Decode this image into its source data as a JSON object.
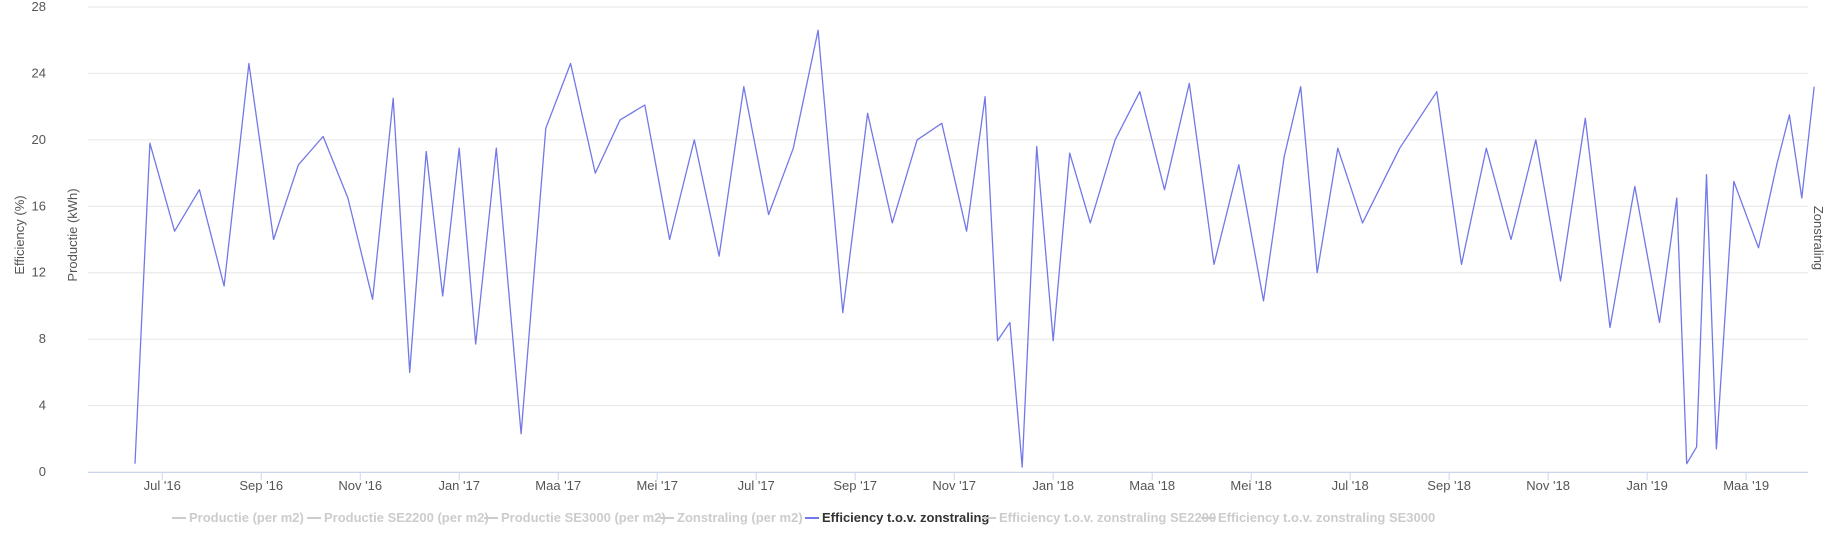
{
  "chart_data": {
    "type": "line",
    "y_axes": [
      {
        "id": "efficiency",
        "label": "Efficiency (%)",
        "side": "left"
      },
      {
        "id": "production",
        "label": "Productie (kWh)",
        "side": "left"
      },
      {
        "id": "irradiance",
        "label": "Zonstraling",
        "side": "right"
      }
    ],
    "ylim": [
      0,
      28
    ],
    "y_ticks": [
      0,
      4,
      8,
      12,
      16,
      20,
      24,
      28
    ],
    "x_ticks": [
      "Jul '16",
      "Sep '16",
      "Nov '16",
      "Jan '17",
      "Maa '17",
      "Mei '17",
      "Jul '17",
      "Sep '17",
      "Nov '17",
      "Jan '18",
      "Maa '18",
      "Mei '18",
      "Jul '18",
      "Sep '18",
      "Nov '18",
      "Jan '19",
      "Maa '19"
    ],
    "x_range": [
      "Jun '16",
      "Apr '19"
    ],
    "grid": true,
    "legend_position": "bottom-center",
    "series": [
      {
        "name": "Productie (per m2)",
        "visible": false,
        "color": "#cccccc"
      },
      {
        "name": "Productie SE2200 (per m2)",
        "visible": false,
        "color": "#cccccc"
      },
      {
        "name": "Productie SE3000 (per m2)",
        "visible": false,
        "color": "#cccccc"
      },
      {
        "name": "Zonstraling (per m2)",
        "visible": false,
        "color": "#cccccc"
      },
      {
        "name": "Efficiency t.o.v. zonstraling",
        "visible": true,
        "color": "#7378e8",
        "key_points": [
          [
            "Jun '16",
            0.5
          ],
          [
            "Jul '16",
            19.8
          ],
          [
            "Jul '16",
            14.5
          ],
          [
            "Aug '16",
            17.0
          ],
          [
            "Aug '16",
            11.2
          ],
          [
            "Sep '16",
            24.6
          ],
          [
            "Sep '16",
            14.0
          ],
          [
            "Oct '16",
            18.5
          ],
          [
            "Oct '16",
            20.2
          ],
          [
            "Nov '16",
            16.5
          ],
          [
            "Nov '16",
            10.4
          ],
          [
            "Dec '16",
            22.5
          ],
          [
            "Dec '16",
            6.0
          ],
          [
            "Dec '16",
            19.3
          ],
          [
            "Jan '17",
            10.6
          ],
          [
            "Jan '17",
            19.5
          ],
          [
            "Jan '17",
            7.7
          ],
          [
            "Feb '17",
            19.5
          ],
          [
            "Feb '17",
            2.3
          ],
          [
            "Mar '17",
            20.7
          ],
          [
            "Mar '17",
            24.6
          ],
          [
            "Apr '17",
            18.0
          ],
          [
            "Apr '17",
            21.2
          ],
          [
            "May '17",
            22.1
          ],
          [
            "May '17",
            14.0
          ],
          [
            "Jun '17",
            20.0
          ],
          [
            "Jun '17",
            13.0
          ],
          [
            "Jul '17",
            23.2
          ],
          [
            "Jul '17",
            15.5
          ],
          [
            "Aug '17",
            19.5
          ],
          [
            "Aug '17",
            26.6
          ],
          [
            "Sep '17",
            9.6
          ],
          [
            "Sep '17",
            21.6
          ],
          [
            "Oct '17",
            15.0
          ],
          [
            "Oct '17",
            20.0
          ],
          [
            "Nov '17",
            21.0
          ],
          [
            "Nov '17",
            14.5
          ],
          [
            "Dec '17",
            22.6
          ],
          [
            "Dec '17",
            7.9
          ],
          [
            "Dec '17",
            9.0
          ],
          [
            "Dec '17",
            0.3
          ],
          [
            "Jan '18",
            19.6
          ],
          [
            "Jan '18",
            7.9
          ],
          [
            "Jan '18",
            19.2
          ],
          [
            "Feb '18",
            15.0
          ],
          [
            "Feb '18",
            20.0
          ],
          [
            "Mar '18",
            22.9
          ],
          [
            "Mar '18",
            17.0
          ],
          [
            "Apr '18",
            23.4
          ],
          [
            "Apr '18",
            12.5
          ],
          [
            "May '18",
            18.5
          ],
          [
            "May '18",
            10.3
          ],
          [
            "Jun '18",
            19.0
          ],
          [
            "Jun '18",
            23.2
          ],
          [
            "Jun '18",
            12.0
          ],
          [
            "Jul '18",
            19.5
          ],
          [
            "Jul '18",
            15.0
          ],
          [
            "Aug '18",
            19.5
          ],
          [
            "Sep '18",
            22.9
          ],
          [
            "Sep '18",
            12.5
          ],
          [
            "Oct '18",
            19.5
          ],
          [
            "Oct '18",
            14.0
          ],
          [
            "Nov '18",
            20.0
          ],
          [
            "Nov '18",
            11.5
          ],
          [
            "Dec '18",
            21.3
          ],
          [
            "Dec '18",
            8.7
          ],
          [
            "Jan '19",
            17.2
          ],
          [
            "Jan '19",
            9.0
          ],
          [
            "Feb '19",
            16.5
          ],
          [
            "Feb '19",
            0.5
          ],
          [
            "Feb '19",
            1.5
          ],
          [
            "Feb '19",
            17.9
          ],
          [
            "Feb '19",
            1.4
          ],
          [
            "Mar '19",
            17.5
          ],
          [
            "Mar '19",
            13.5
          ],
          [
            "Apr '19",
            18.6
          ],
          [
            "Apr '19",
            21.5
          ],
          [
            "Apr '19",
            16.5
          ],
          [
            "Apr '19",
            23.2
          ]
        ]
      },
      {
        "name": "Efficiency t.o.v. zonstraling SE2200",
        "visible": false,
        "color": "#cccccc"
      },
      {
        "name": "Efficiency t.o.v. zonstraling SE3000",
        "visible": false,
        "color": "#cccccc"
      }
    ]
  }
}
